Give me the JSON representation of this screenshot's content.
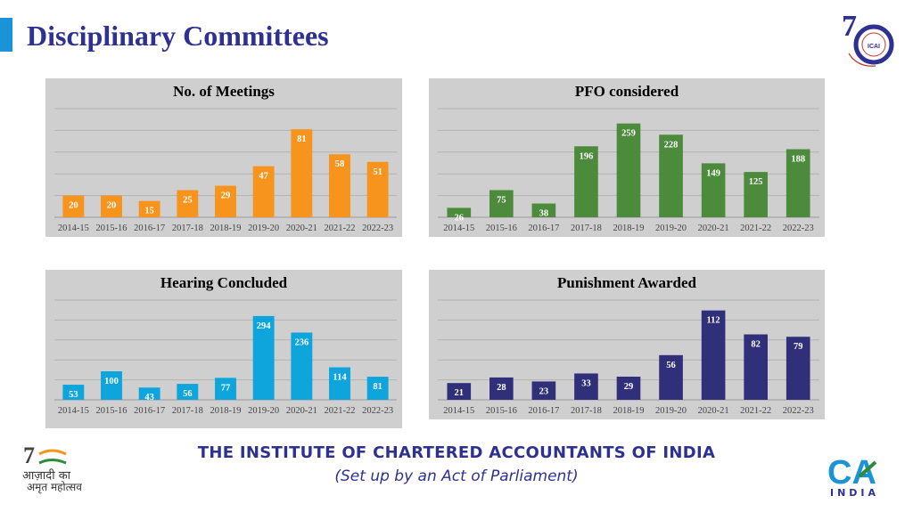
{
  "page": {
    "title": "Disciplinary Committees",
    "footer_title": "THE INSTITUTE OF CHARTERED ACCOUNTANTS OF INDIA",
    "footer_subtitle": "(Set up by an Act of Parliament)",
    "logo_75_text": "ICAI",
    "azadi_text_line1": "आज़ादी का",
    "azadi_text_line2": "अमृत महोत्सव",
    "ca_logo_text": "CA",
    "ca_india_text": "INDIA",
    "colors": {
      "title": "#2e3192",
      "accent": "#1a94d6",
      "panel_bg": "#cfcfcf"
    }
  },
  "chart_data": [
    {
      "type": "bar",
      "title": "No. of Meetings",
      "categories": [
        "2014-15",
        "2015-16",
        "2016-17",
        "2017-18",
        "2018-19",
        "2019-20",
        "2020-21",
        "2021-22",
        "2022-23"
      ],
      "values": [
        20,
        20,
        15,
        25,
        29,
        47,
        81,
        58,
        51
      ],
      "color": "#f7941d",
      "ylim": [
        0,
        100
      ],
      "grid": true
    },
    {
      "type": "bar",
      "title": "PFO considered",
      "categories": [
        "2014-15",
        "2015-16",
        "2016-17",
        "2017-18",
        "2018-19",
        "2019-20",
        "2020-21",
        "2021-22",
        "2022-23"
      ],
      "values": [
        26,
        75,
        38,
        196,
        259,
        228,
        149,
        125,
        188
      ],
      "color": "#4b8b3b",
      "ylim": [
        0,
        300
      ],
      "grid": true
    },
    {
      "type": "bar",
      "title": "Hearing Concluded",
      "categories": [
        "2014-15",
        "2015-16",
        "2016-17",
        "2017-18",
        "2018-19",
        "2019-20",
        "2020-21",
        "2021-22",
        "2022-23"
      ],
      "values": [
        53,
        100,
        43,
        56,
        77,
        294,
        236,
        114,
        81
      ],
      "color": "#0ea5dd",
      "ylim": [
        0,
        350
      ],
      "grid": true
    },
    {
      "type": "bar",
      "title": "Punishment Awarded",
      "categories": [
        "2014-15",
        "2015-16",
        "2016-17",
        "2017-18",
        "2018-19",
        "2019-20",
        "2020-21",
        "2021-22",
        "2022-23"
      ],
      "values": [
        21,
        28,
        23,
        33,
        29,
        56,
        112,
        82,
        79
      ],
      "color": "#2f2f7a",
      "ylim": [
        0,
        125
      ],
      "grid": true
    }
  ]
}
